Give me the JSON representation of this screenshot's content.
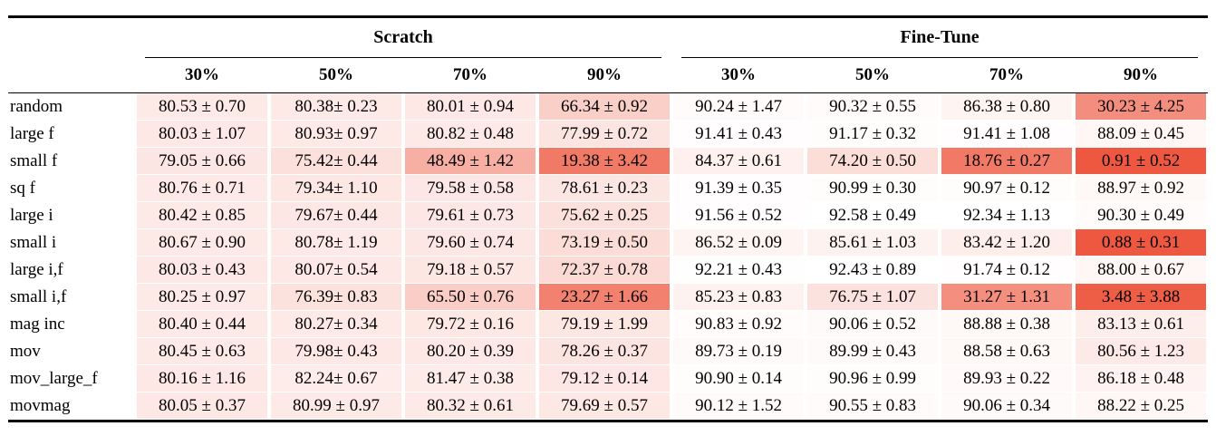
{
  "table": {
    "groups": [
      {
        "label": "Scratch"
      },
      {
        "label": "Fine-Tune"
      }
    ],
    "col_headers": [
      "30%",
      "50%",
      "70%",
      "90%",
      "30%",
      "50%",
      "70%",
      "90%"
    ],
    "rows": [
      {
        "label": "random",
        "cells": [
          "80.53 ± 0.70",
          "80.38± 0.23",
          "80.01 ± 0.94",
          "66.34 ± 0.92",
          "90.24 ± 1.47",
          "90.32 ± 0.55",
          "86.38 ± 0.80",
          "30.23 ± 4.25"
        ]
      },
      {
        "label": "large f",
        "cells": [
          "80.03 ± 1.07",
          "80.93± 0.97",
          "80.82 ± 0.48",
          "77.99 ± 0.72",
          "91.41 ± 0.43",
          "91.17 ± 0.32",
          "91.41 ± 1.08",
          "88.09 ± 0.45"
        ]
      },
      {
        "label": "small f",
        "cells": [
          "79.05 ± 0.66",
          "75.42± 0.44",
          "48.49 ± 1.42",
          "19.38 ± 3.42",
          "84.37 ± 0.61",
          "74.20 ± 0.50",
          "18.76 ± 0.27",
          "0.91 ± 0.52"
        ]
      },
      {
        "label": "sq f",
        "cells": [
          "80.76 ± 0.71",
          "79.34± 1.10",
          "79.58 ± 0.58",
          "78.61 ± 0.23",
          "91.39 ± 0.35",
          "90.99 ± 0.30",
          "90.97 ± 0.12",
          "88.97 ± 0.92"
        ]
      },
      {
        "label": "large i",
        "cells": [
          "80.42 ± 0.85",
          "79.67± 0.44",
          "79.61 ± 0.73",
          "75.62 ± 0.25",
          "91.56 ± 0.52",
          "92.58 ± 0.49",
          "92.34 ± 1.13",
          "90.30 ± 0.49"
        ]
      },
      {
        "label": "small i",
        "cells": [
          "80.67 ± 0.90",
          "80.78± 1.19",
          "79.60 ± 0.74",
          "73.19 ± 0.50",
          "86.52 ± 0.09",
          "85.61 ± 1.03",
          "83.42 ± 1.20",
          "0.88 ± 0.31"
        ]
      },
      {
        "label": "large i,f",
        "cells": [
          "80.03 ± 0.43",
          "80.07± 0.54",
          "79.18 ± 0.57",
          "72.37 ± 0.78",
          "92.21 ± 0.43",
          "92.43 ± 0.89",
          "91.74 ± 0.12",
          "88.00 ± 0.67"
        ]
      },
      {
        "label": "small i,f",
        "cells": [
          "80.25 ± 0.97",
          "76.39± 0.83",
          "65.50 ± 0.76",
          "23.27 ± 1.66",
          "85.23 ± 0.83",
          "76.75 ± 1.07",
          "31.27 ± 1.31",
          "3.48 ± 3.88"
        ]
      },
      {
        "label": "mag inc",
        "cells": [
          "80.40 ± 0.44",
          "80.27± 0.34",
          "79.72 ± 0.16",
          "79.19 ± 1.99",
          "90.83 ± 0.92",
          "90.06 ± 0.52",
          "88.88 ± 0.38",
          "83.13 ± 0.61"
        ]
      },
      {
        "label": "mov",
        "cells": [
          "80.45 ± 0.63",
          "79.98± 0.43",
          "80.20 ± 0.39",
          "78.26 ± 0.37",
          "89.73 ± 0.19",
          "89.99 ± 0.43",
          "88.58 ± 0.63",
          "80.56 ± 1.23"
        ]
      },
      {
        "label": "mov_large_f",
        "cells": [
          "80.16 ± 1.16",
          "82.24± 0.67",
          "81.47 ± 0.38",
          "79.12 ± 0.14",
          "90.90 ± 0.14",
          "90.96 ± 0.99",
          "89.93 ± 0.22",
          "86.18 ± 0.48"
        ]
      },
      {
        "label": "movmag",
        "cells": [
          "80.05 ± 0.37",
          "80.99 ± 0.97",
          "80.32 ± 0.61",
          "79.69 ± 0.57",
          "90.12 ± 1.52",
          "90.55 ± 0.83",
          "90.06 ± 0.34",
          "88.22 ± 0.25"
        ]
      }
    ],
    "heatmap": {
      "low_value_color": "#ee5840",
      "high_value_color": "#ffffff",
      "vmin": 0.88,
      "vmax": 92.58
    }
  }
}
